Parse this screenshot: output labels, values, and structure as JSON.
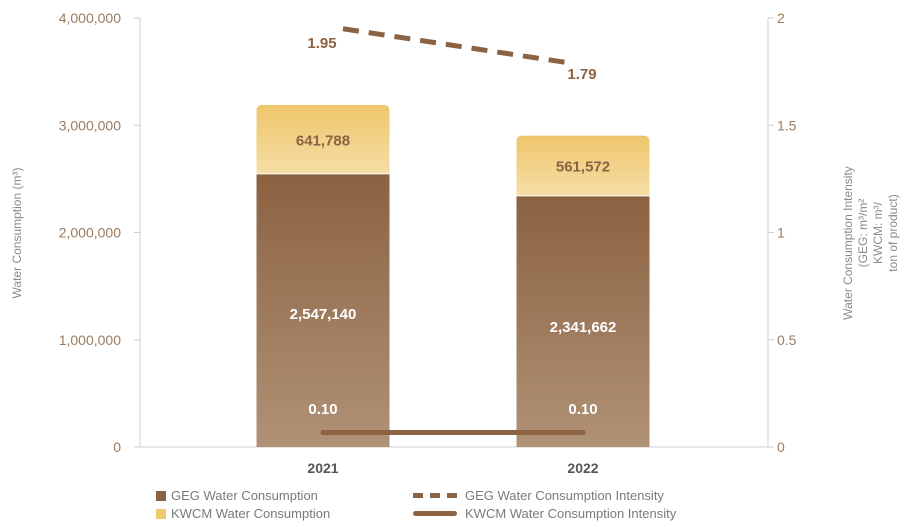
{
  "chart_data": {
    "type": "bar",
    "categories": [
      "2021",
      "2022"
    ],
    "series": [
      {
        "name": "GEG Water Consumption",
        "type": "stacked-bar",
        "axis": "left",
        "values": [
          2547140,
          2341662
        ],
        "color": "#8b6242"
      },
      {
        "name": "KWCM Water Consumption",
        "type": "stacked-bar",
        "axis": "left",
        "values": [
          641788,
          561572
        ],
        "color": "#f0ca6e"
      },
      {
        "name": "GEG Water Consumption Intensity",
        "type": "line",
        "style": "dashed",
        "axis": "right",
        "values": [
          1.95,
          1.79
        ],
        "color": "#8b6242"
      },
      {
        "name": "KWCM Water Consumption Intensity",
        "type": "line",
        "style": "solid",
        "axis": "right",
        "values": [
          0.1,
          0.1
        ],
        "color": "#8b6242"
      }
    ],
    "data_labels": {
      "geg": [
        "2,547,140",
        "2,341,662"
      ],
      "kwcm": [
        "641,788",
        "561,572"
      ],
      "geg_intensity": [
        "1.95",
        "1.79"
      ],
      "kwcm_intensity": [
        "0.10",
        "0.10"
      ]
    },
    "ylabel_left": "Water Consumption (m³)",
    "ylabel_right": [
      "Water Consumption Intensity",
      "(GEG: m³/m²",
      "KWCM: m³/",
      "ton of product)"
    ],
    "ylim_left": [
      0,
      4000000
    ],
    "ylim_right": [
      0,
      2
    ],
    "yticks_left": [
      "0",
      "1,000,000",
      "2,000,000",
      "3,000,000",
      "4,000,000"
    ],
    "yticks_right": [
      "0",
      "0.5",
      "1",
      "1.5",
      "2"
    ],
    "legend_position": "bottom"
  },
  "legend": {
    "geg_bar": "GEG Water Consumption",
    "kwcm_bar": "KWCM Water Consumption",
    "geg_line": "GEG Water Consumption Intensity",
    "kwcm_line": "KWCM Water Consumption Intensity"
  }
}
